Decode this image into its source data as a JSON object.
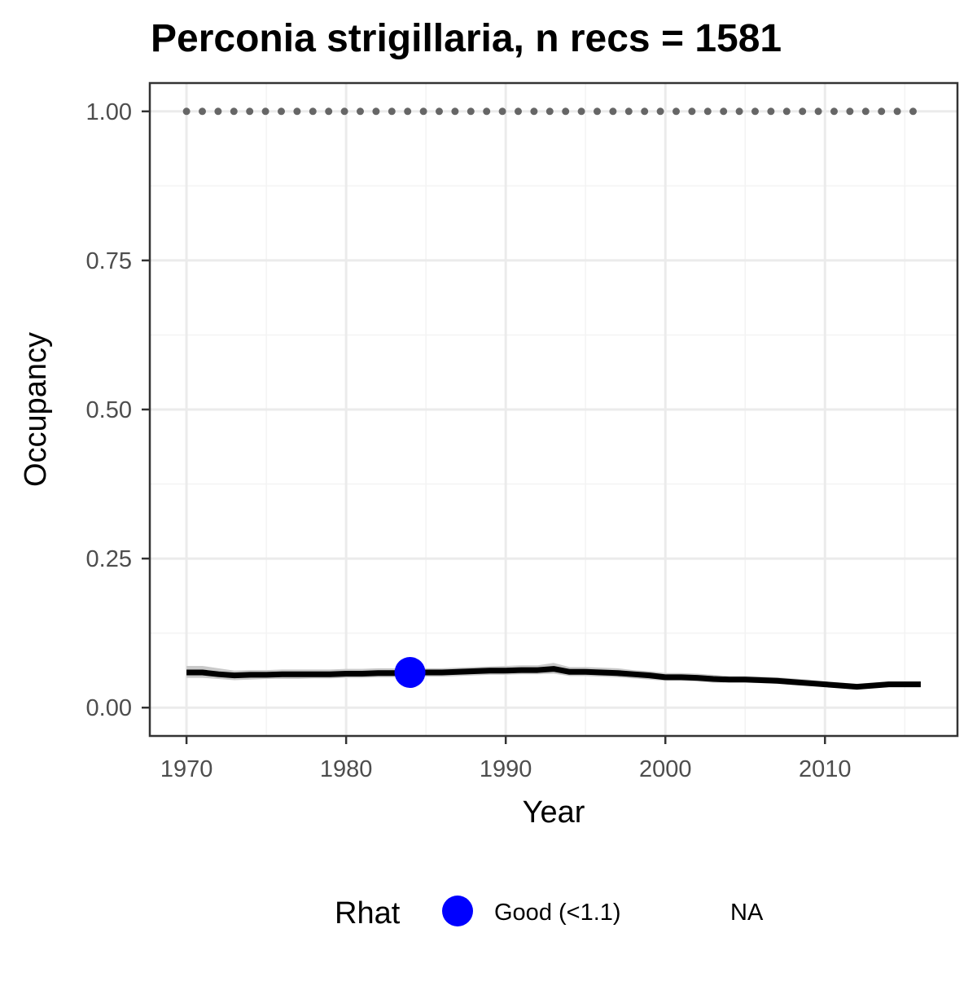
{
  "chart_data": {
    "type": "line",
    "title": "Perconia strigillaria, n recs = 1581",
    "xlabel": "Year",
    "ylabel": "Occupancy",
    "xlim": [
      1967.7,
      2018.3
    ],
    "ylim": [
      -0.0475,
      1.0475
    ],
    "x_ticks": [
      1970,
      1980,
      1990,
      2000,
      2010
    ],
    "x_tick_labels": [
      "1970",
      "1980",
      "1990",
      "2000",
      "2010"
    ],
    "y_ticks": [
      0,
      0.25,
      0.5,
      0.75,
      1
    ],
    "y_tick_labels": [
      "0.00",
      "0.25",
      "0.50",
      "0.75",
      "1.00"
    ],
    "grid": true,
    "series": [
      {
        "x": [
          1970,
          1971,
          1972,
          1973,
          1974,
          1975,
          1976,
          1977,
          1978,
          1979,
          1980,
          1981,
          1982,
          1983,
          1984,
          1985,
          1986,
          1987,
          1988,
          1989,
          1990,
          1991,
          1992,
          1993,
          1994,
          1995,
          1996,
          1997,
          1998,
          1999,
          2000,
          2001,
          2002,
          2003,
          2004,
          2005,
          2006,
          2007,
          2008,
          2009,
          2010,
          2011,
          2012,
          2013,
          2014,
          2015,
          2016
        ],
        "y": [
          0.059,
          0.059,
          0.056,
          0.054,
          0.055,
          0.055,
          0.056,
          0.056,
          0.056,
          0.056,
          0.057,
          0.057,
          0.058,
          0.058,
          0.059,
          0.059,
          0.059,
          0.06,
          0.061,
          0.062,
          0.062,
          0.063,
          0.063,
          0.065,
          0.06,
          0.06,
          0.059,
          0.058,
          0.056,
          0.054,
          0.051,
          0.051,
          0.05,
          0.048,
          0.047,
          0.047,
          0.046,
          0.045,
          0.043,
          0.041,
          0.039,
          0.037,
          0.035,
          0.037,
          0.039,
          0.039,
          0.039
        ],
        "lower": [
          0.05,
          0.05,
          0.048,
          0.046,
          0.047,
          0.048,
          0.048,
          0.048,
          0.049,
          0.049,
          0.05,
          0.05,
          0.051,
          0.051,
          0.052,
          0.052,
          0.052,
          0.053,
          0.054,
          0.055,
          0.055,
          0.056,
          0.056,
          0.057,
          0.053,
          0.053,
          0.052,
          0.051,
          0.049,
          0.047,
          0.045,
          0.045,
          0.044,
          0.042,
          0.042,
          0.042,
          0.041,
          0.04,
          0.038,
          0.036,
          0.035,
          0.033,
          0.031,
          0.033,
          0.035,
          0.035,
          0.035
        ],
        "upper": [
          0.07,
          0.07,
          0.066,
          0.062,
          0.063,
          0.063,
          0.064,
          0.064,
          0.064,
          0.064,
          0.065,
          0.065,
          0.066,
          0.066,
          0.067,
          0.066,
          0.066,
          0.067,
          0.068,
          0.069,
          0.07,
          0.071,
          0.071,
          0.075,
          0.068,
          0.068,
          0.067,
          0.066,
          0.063,
          0.061,
          0.058,
          0.058,
          0.057,
          0.055,
          0.053,
          0.053,
          0.052,
          0.051,
          0.049,
          0.047,
          0.044,
          0.042,
          0.04,
          0.042,
          0.044,
          0.044,
          0.044
        ]
      }
    ],
    "reference_line": {
      "y": 1.0,
      "x_start": 1970,
      "x_end": 2016,
      "style": "dotted",
      "color": "#666666"
    },
    "highlight_points": [
      {
        "x": 1984,
        "y": 0.059,
        "rhat": "Good (<1.1)"
      }
    ],
    "legend": {
      "title": "Rhat",
      "position": "bottom",
      "items": [
        {
          "label": "Good (<1.1)",
          "color": "#0000ff",
          "marker": "circle"
        },
        {
          "label": "NA",
          "color": "",
          "marker": "none"
        }
      ]
    },
    "colors": {
      "line": "#000000",
      "ribbon": "#c9c9c9",
      "point": "#0000ff",
      "grid_major": "#ebebeb",
      "grid_minor": "#f3f3f3",
      "panel_border": "#333333",
      "tick_label": "#4d4d4d"
    }
  }
}
